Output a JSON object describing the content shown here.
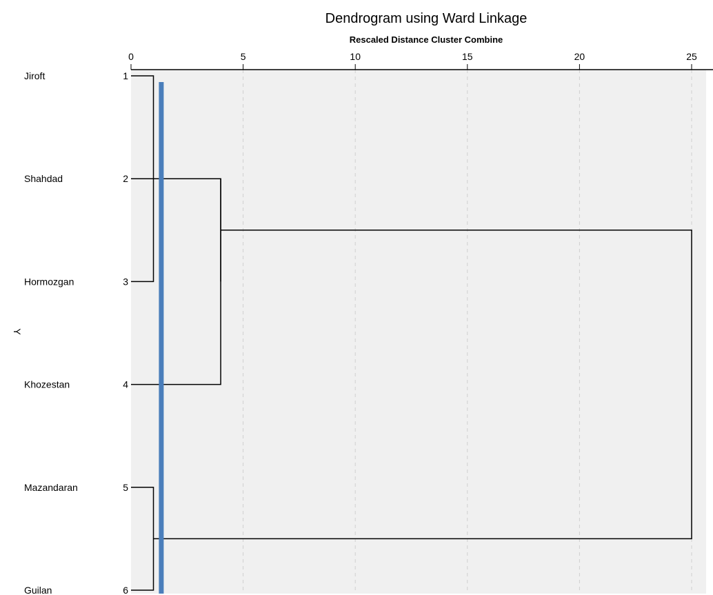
{
  "chart_data": {
    "type": "dendrogram",
    "title": "Dendrogram using Ward Linkage",
    "subtitle": "Rescaled Distance Cluster Combine",
    "ylabel": "Y",
    "xlim": [
      0,
      25
    ],
    "x_ticks": [
      0,
      5,
      10,
      15,
      20,
      25
    ],
    "grid": true,
    "leaves": [
      {
        "num": "1",
        "name": "Jiroft"
      },
      {
        "num": "2",
        "name": "Shahdad"
      },
      {
        "num": "3",
        "name": "Hormozgan"
      },
      {
        "num": "4",
        "name": "Khozestan"
      },
      {
        "num": "5",
        "name": "Mazandaran"
      },
      {
        "num": "6",
        "name": "Guilan"
      }
    ],
    "merges": [
      {
        "id": "c1",
        "left": 1,
        "right": 3,
        "distance": 1.0
      },
      {
        "id": "c2",
        "left": 5,
        "right": 6,
        "distance": 1.0
      },
      {
        "id": "c3",
        "left": 2,
        "right": 4,
        "distance": 4.0
      },
      {
        "id": "c4",
        "left": "c1",
        "right": "c3",
        "distance": 4.0
      },
      {
        "id": "c5",
        "left": "c4",
        "right": "c2",
        "distance": 25.0
      }
    ],
    "cut_line": {
      "distance": 1.35,
      "color": "#4a7ebb"
    },
    "colors": {
      "plot_bg": "#f0f0f0",
      "lines": "#000000",
      "grid": "#cfcfcf"
    }
  }
}
